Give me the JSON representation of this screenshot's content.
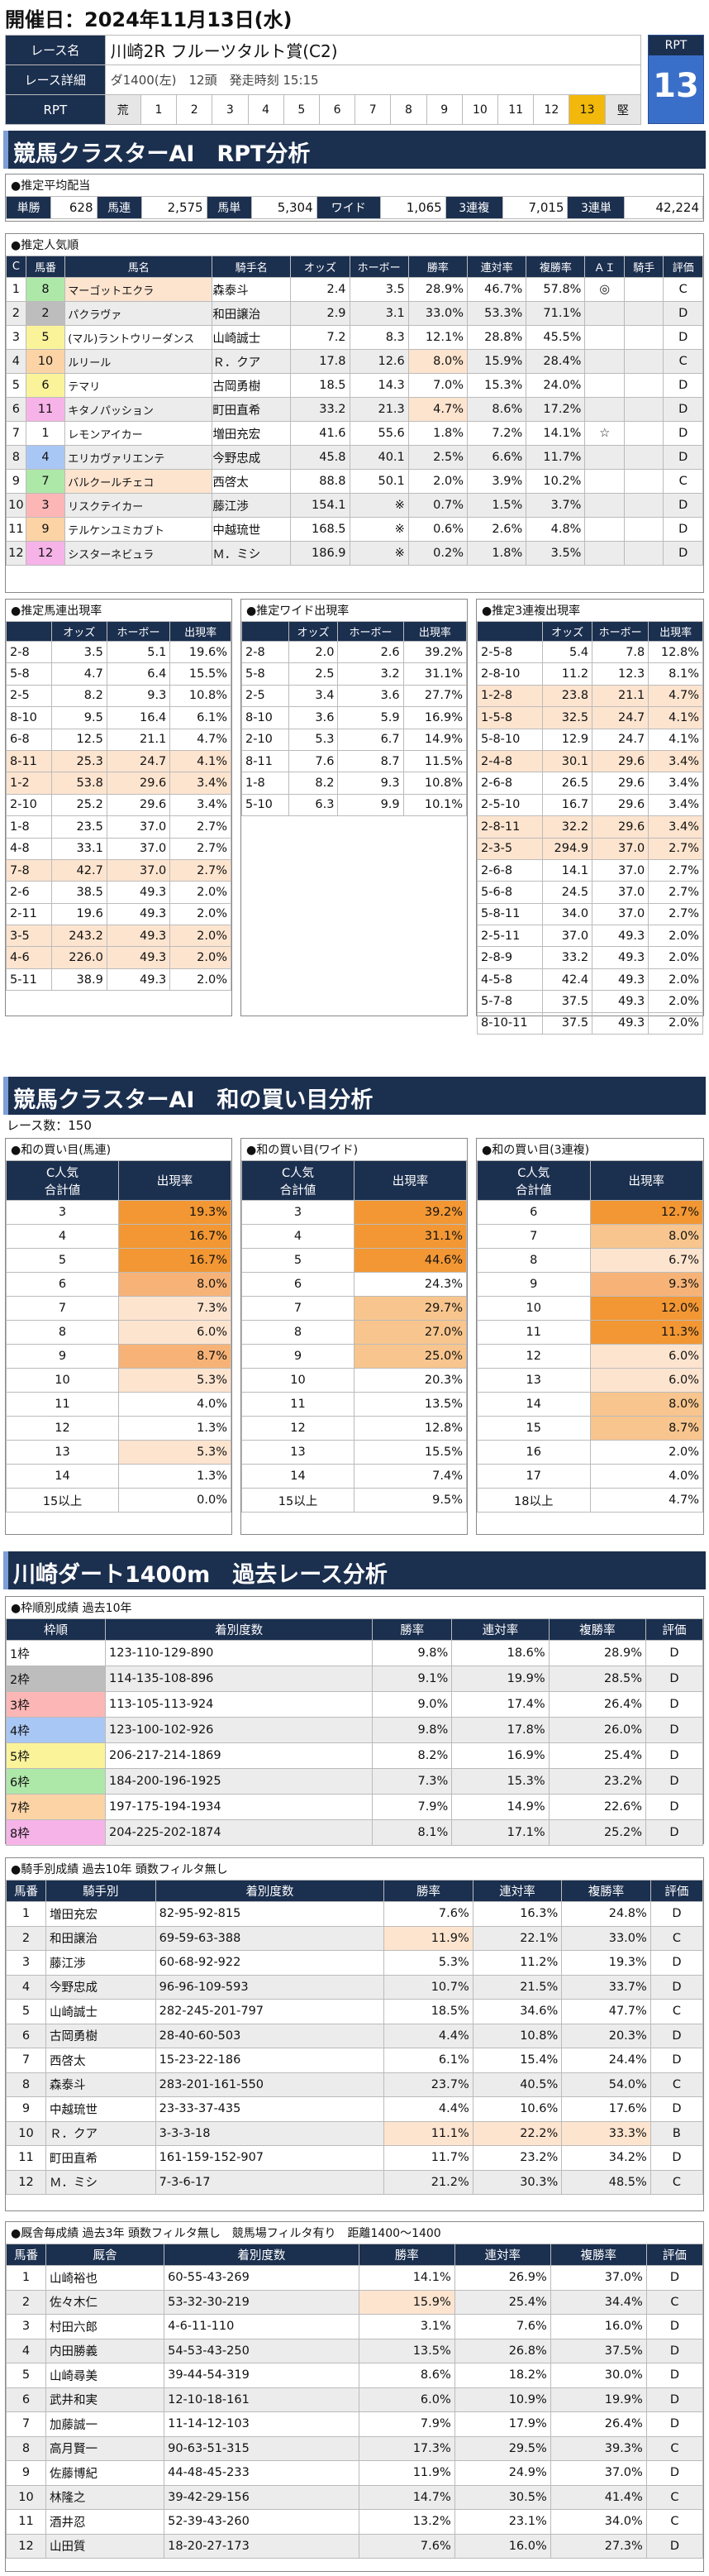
{
  "date": "開催日：2024年11月13日(水)",
  "race": {
    "name_label": "レース名",
    "name": "川崎2R フルーツタルト賞(C2)",
    "detail_label": "レース詳細",
    "detail": "ダ1400(左)　12頭　発走時刻 15:15",
    "rpt_label": "RPT",
    "scale": [
      "荒",
      "1",
      "2",
      "3",
      "4",
      "5",
      "6",
      "7",
      "8",
      "9",
      "10",
      "11",
      "12",
      "13",
      "堅"
    ],
    "rpt_badge": "RPT",
    "rpt_value": "13"
  },
  "s1": {
    "title": "競馬クラスターAI　RPT分析"
  },
  "payout": {
    "title": "●推定平均配当",
    "items": [
      [
        "単勝",
        "628"
      ],
      [
        "馬連",
        "2,575"
      ],
      [
        "馬単",
        "5,304"
      ],
      [
        "ワイド",
        "1,065"
      ],
      [
        "3連複",
        "7,015"
      ],
      [
        "3連単",
        "42,224"
      ]
    ]
  },
  "popularity": {
    "title": "●推定人気順",
    "headers": [
      "C",
      "馬番",
      "馬名",
      "騎手名",
      "オッズ",
      "ホーボー",
      "勝率",
      "連対率",
      "複勝率",
      "ＡＩ",
      "騎手",
      "評価"
    ],
    "rows": [
      [
        "1",
        "8",
        "マーゴットエクラ",
        "森泰斗",
        "2.4",
        "3.5",
        "28.9%",
        "46.7%",
        "57.8%",
        "◎",
        "",
        "C"
      ],
      [
        "2",
        "2",
        "パクラヴァ",
        "和田譲治",
        "2.9",
        "3.1",
        "33.0%",
        "53.3%",
        "71.1%",
        "",
        "",
        "D"
      ],
      [
        "3",
        "5",
        "(マル)ラントウリーダンス",
        "山崎誠士",
        "7.2",
        "8.3",
        "12.1%",
        "28.8%",
        "45.5%",
        "",
        "",
        "D"
      ],
      [
        "4",
        "10",
        "ルリール",
        "Ｒ．クア",
        "17.8",
        "12.6",
        "8.0%",
        "15.9%",
        "28.4%",
        "",
        "",
        "C"
      ],
      [
        "5",
        "6",
        "テマリ",
        "古岡勇樹",
        "18.5",
        "14.3",
        "7.0%",
        "15.3%",
        "24.0%",
        "",
        "",
        "D"
      ],
      [
        "6",
        "11",
        "キタノパッション",
        "町田直希",
        "33.2",
        "21.3",
        "4.7%",
        "8.6%",
        "17.2%",
        "",
        "",
        "D"
      ],
      [
        "7",
        "1",
        "レモンアイカー",
        "増田充宏",
        "41.6",
        "55.6",
        "1.8%",
        "7.2%",
        "14.1%",
        "☆",
        "",
        "D"
      ],
      [
        "8",
        "4",
        "エリカヴァリエンテ",
        "今野忠成",
        "45.8",
        "40.1",
        "2.5%",
        "6.6%",
        "11.7%",
        "",
        "",
        "D"
      ],
      [
        "9",
        "7",
        "バルクールチェコ",
        "西啓太",
        "88.8",
        "50.1",
        "2.0%",
        "3.9%",
        "10.2%",
        "",
        "",
        "C"
      ],
      [
        "10",
        "3",
        "リスクテイカー",
        "藤江渉",
        "154.1",
        "※",
        "0.7%",
        "1.5%",
        "3.7%",
        "",
        "",
        "D"
      ],
      [
        "11",
        "9",
        "テルケンユミカブト",
        "中越琉世",
        "168.5",
        "※",
        "0.6%",
        "2.6%",
        "4.8%",
        "",
        "",
        "D"
      ],
      [
        "12",
        "12",
        "シスターネビュラ",
        "Ｍ．ミシ",
        "186.9",
        "※",
        "0.2%",
        "1.8%",
        "3.5%",
        "",
        "",
        "D"
      ]
    ]
  },
  "umaren": {
    "title": "●推定馬連出現率",
    "headers": [
      "",
      "オッズ",
      "ホーボー",
      "出現率"
    ],
    "rows": [
      [
        "2-8",
        "3.5",
        "5.1",
        "19.6%"
      ],
      [
        "5-8",
        "4.7",
        "6.4",
        "15.5%"
      ],
      [
        "2-5",
        "8.2",
        "9.3",
        "10.8%"
      ],
      [
        "8-10",
        "9.5",
        "16.4",
        "6.1%"
      ],
      [
        "6-8",
        "12.5",
        "21.1",
        "4.7%"
      ],
      [
        "8-11",
        "25.3",
        "24.7",
        "4.1%"
      ],
      [
        "1-2",
        "53.8",
        "29.6",
        "3.4%"
      ],
      [
        "2-10",
        "25.2",
        "29.6",
        "3.4%"
      ],
      [
        "1-8",
        "23.5",
        "37.0",
        "2.7%"
      ],
      [
        "4-8",
        "33.1",
        "37.0",
        "2.7%"
      ],
      [
        "7-8",
        "42.7",
        "37.0",
        "2.7%"
      ],
      [
        "2-6",
        "38.5",
        "49.3",
        "2.0%"
      ],
      [
        "2-11",
        "19.6",
        "49.3",
        "2.0%"
      ],
      [
        "3-5",
        "243.2",
        "49.3",
        "2.0%"
      ],
      [
        "4-6",
        "226.0",
        "49.3",
        "2.0%"
      ],
      [
        "5-11",
        "38.9",
        "49.3",
        "2.0%"
      ]
    ]
  },
  "wide": {
    "title": "●推定ワイド出現率",
    "headers": [
      "",
      "オッズ",
      "ホーボー",
      "出現率"
    ],
    "rows": [
      [
        "2-8",
        "2.0",
        "2.6",
        "39.2%"
      ],
      [
        "5-8",
        "2.5",
        "3.2",
        "31.1%"
      ],
      [
        "2-5",
        "3.4",
        "3.6",
        "27.7%"
      ],
      [
        "8-10",
        "3.6",
        "5.9",
        "16.9%"
      ],
      [
        "2-10",
        "5.3",
        "6.7",
        "14.9%"
      ],
      [
        "8-11",
        "7.6",
        "8.7",
        "11.5%"
      ],
      [
        "1-8",
        "8.2",
        "9.3",
        "10.8%"
      ],
      [
        "5-10",
        "6.3",
        "9.9",
        "10.1%"
      ]
    ]
  },
  "trio": {
    "title": "●推定3連複出現率",
    "headers": [
      "",
      "オッズ",
      "ホーボー",
      "出現率"
    ],
    "rows": [
      [
        "2-5-8",
        "5.4",
        "7.8",
        "12.8%"
      ],
      [
        "2-8-10",
        "11.2",
        "12.3",
        "8.1%"
      ],
      [
        "1-2-8",
        "23.8",
        "21.1",
        "4.7%"
      ],
      [
        "1-5-8",
        "32.5",
        "24.7",
        "4.1%"
      ],
      [
        "5-8-10",
        "12.9",
        "24.7",
        "4.1%"
      ],
      [
        "2-4-8",
        "30.1",
        "29.6",
        "3.4%"
      ],
      [
        "2-6-8",
        "26.5",
        "29.6",
        "3.4%"
      ],
      [
        "2-5-10",
        "16.7",
        "29.6",
        "3.4%"
      ],
      [
        "2-8-11",
        "32.2",
        "29.6",
        "3.4%"
      ],
      [
        "2-3-5",
        "294.9",
        "37.0",
        "2.7%"
      ],
      [
        "2-6-8",
        "14.1",
        "37.0",
        "2.7%"
      ],
      [
        "5-6-8",
        "24.5",
        "37.0",
        "2.7%"
      ],
      [
        "5-8-11",
        "34.0",
        "37.0",
        "2.7%"
      ],
      [
        "2-5-11",
        "37.0",
        "49.3",
        "2.0%"
      ],
      [
        "2-8-9",
        "33.2",
        "49.3",
        "2.0%"
      ],
      [
        "4-5-8",
        "42.4",
        "49.3",
        "2.0%"
      ],
      [
        "5-7-8",
        "37.5",
        "49.3",
        "2.0%"
      ],
      [
        "8-10-11",
        "37.5",
        "49.3",
        "2.0%"
      ]
    ]
  },
  "s2": {
    "title": "競馬クラスターAI　和の買い目分析",
    "races": "レース数：150"
  },
  "sum": {
    "t1": "●和の買い目(馬連)",
    "t2": "●和の買い目(ワイド)",
    "t3": "●和の買い目(3連複)",
    "h1": "C人気",
    "h2": "合計値",
    "h3": "出現率",
    "a": [
      [
        "3",
        "19.3%"
      ],
      [
        "4",
        "16.7%"
      ],
      [
        "5",
        "16.7%"
      ],
      [
        "6",
        "8.0%"
      ],
      [
        "7",
        "7.3%"
      ],
      [
        "8",
        "6.0%"
      ],
      [
        "9",
        "8.7%"
      ],
      [
        "10",
        "5.3%"
      ],
      [
        "11",
        "4.0%"
      ],
      [
        "12",
        "1.3%"
      ],
      [
        "13",
        "5.3%"
      ],
      [
        "14",
        "1.3%"
      ],
      [
        "15以上",
        "0.0%"
      ]
    ],
    "b": [
      [
        "3",
        "39.2%"
      ],
      [
        "4",
        "31.1%"
      ],
      [
        "5",
        "44.6%"
      ],
      [
        "6",
        "24.3%"
      ],
      [
        "7",
        "29.7%"
      ],
      [
        "8",
        "27.0%"
      ],
      [
        "9",
        "25.0%"
      ],
      [
        "10",
        "20.3%"
      ],
      [
        "11",
        "13.5%"
      ],
      [
        "12",
        "12.8%"
      ],
      [
        "13",
        "15.5%"
      ],
      [
        "14",
        "7.4%"
      ],
      [
        "15以上",
        "9.5%"
      ]
    ],
    "c": [
      [
        "6",
        "12.7%"
      ],
      [
        "7",
        "8.0%"
      ],
      [
        "8",
        "6.7%"
      ],
      [
        "9",
        "9.3%"
      ],
      [
        "10",
        "12.0%"
      ],
      [
        "11",
        "11.3%"
      ],
      [
        "12",
        "6.0%"
      ],
      [
        "13",
        "6.0%"
      ],
      [
        "14",
        "8.0%"
      ],
      [
        "15",
        "8.7%"
      ],
      [
        "16",
        "2.0%"
      ],
      [
        "17",
        "4.0%"
      ],
      [
        "18以上",
        "4.7%"
      ]
    ]
  },
  "s3": {
    "title": "川崎ダート1400m　過去レース分析"
  },
  "waku": {
    "title": "●枠順別成績 過去10年",
    "headers": [
      "枠順",
      "着別度数",
      "勝率",
      "連対率",
      "複勝率",
      "評価"
    ],
    "rows": [
      [
        "1枠",
        "123-110-129-890",
        "9.8%",
        "18.6%",
        "28.9%",
        "D"
      ],
      [
        "2枠",
        "114-135-108-896",
        "9.1%",
        "19.9%",
        "28.5%",
        "D"
      ],
      [
        "3枠",
        "113-105-113-924",
        "9.0%",
        "17.4%",
        "26.4%",
        "D"
      ],
      [
        "4枠",
        "123-100-102-926",
        "9.8%",
        "17.8%",
        "26.0%",
        "D"
      ],
      [
        "5枠",
        "206-217-214-1869",
        "8.2%",
        "16.9%",
        "25.4%",
        "D"
      ],
      [
        "6枠",
        "184-200-196-1925",
        "7.3%",
        "15.3%",
        "23.2%",
        "D"
      ],
      [
        "7枠",
        "197-175-194-1934",
        "7.9%",
        "14.9%",
        "22.6%",
        "D"
      ],
      [
        "8枠",
        "204-225-202-1874",
        "8.1%",
        "17.1%",
        "25.2%",
        "D"
      ]
    ]
  },
  "jockey": {
    "title": "●騎手別成績 過去10年 頭数フィルタ無し",
    "headers": [
      "馬番",
      "騎手別",
      "着別度数",
      "勝率",
      "連対率",
      "複勝率",
      "評価"
    ],
    "rows": [
      [
        "1",
        "増田充宏",
        "82-95-92-815",
        "7.6%",
        "16.3%",
        "24.8%",
        "D"
      ],
      [
        "2",
        "和田譲治",
        "69-59-63-388",
        "11.9%",
        "22.1%",
        "33.0%",
        "C"
      ],
      [
        "3",
        "藤江渉",
        "60-68-92-922",
        "5.3%",
        "11.2%",
        "19.3%",
        "D"
      ],
      [
        "4",
        "今野忠成",
        "96-96-109-593",
        "10.7%",
        "21.5%",
        "33.7%",
        "D"
      ],
      [
        "5",
        "山崎誠士",
        "282-245-201-797",
        "18.5%",
        "34.6%",
        "47.7%",
        "C"
      ],
      [
        "6",
        "古岡勇樹",
        "28-40-60-503",
        "4.4%",
        "10.8%",
        "20.3%",
        "D"
      ],
      [
        "7",
        "西啓太",
        "15-23-22-186",
        "6.1%",
        "15.4%",
        "24.4%",
        "D"
      ],
      [
        "8",
        "森泰斗",
        "283-201-161-550",
        "23.7%",
        "40.5%",
        "54.0%",
        "C"
      ],
      [
        "9",
        "中越琉世",
        "23-33-37-435",
        "4.4%",
        "10.6%",
        "17.6%",
        "D"
      ],
      [
        "10",
        "Ｒ．クア",
        "3-3-3-18",
        "11.1%",
        "22.2%",
        "33.3%",
        "B"
      ],
      [
        "11",
        "町田直希",
        "161-159-152-907",
        "11.7%",
        "23.2%",
        "34.2%",
        "D"
      ],
      [
        "12",
        "Ｍ．ミシ",
        "7-3-6-17",
        "21.2%",
        "30.3%",
        "48.5%",
        "C"
      ]
    ]
  },
  "trainer": {
    "title": "●厩舎毎成績 過去3年 頭数フィルタ無し　競馬場フィルタ有り　距離1400～1400",
    "headers": [
      "馬番",
      "厩舎",
      "着別度数",
      "勝率",
      "連対率",
      "複勝率",
      "評価"
    ],
    "rows": [
      [
        "1",
        "山崎裕也",
        "60-55-43-269",
        "14.1%",
        "26.9%",
        "37.0%",
        "D"
      ],
      [
        "2",
        "佐々木仁",
        "53-32-30-219",
        "15.9%",
        "25.4%",
        "34.4%",
        "C"
      ],
      [
        "3",
        "村田六郎",
        "4-6-11-110",
        "3.1%",
        "7.6%",
        "16.0%",
        "D"
      ],
      [
        "4",
        "内田勝義",
        "54-53-43-250",
        "13.5%",
        "26.8%",
        "37.5%",
        "D"
      ],
      [
        "5",
        "山崎尋美",
        "39-44-54-319",
        "8.6%",
        "18.2%",
        "30.0%",
        "D"
      ],
      [
        "6",
        "武井和実",
        "12-10-18-161",
        "6.0%",
        "10.9%",
        "19.9%",
        "D"
      ],
      [
        "7",
        "加藤誠一",
        "11-14-12-103",
        "7.9%",
        "17.9%",
        "26.4%",
        "D"
      ],
      [
        "8",
        "高月賢一",
        "90-63-51-315",
        "17.3%",
        "29.5%",
        "39.3%",
        "C"
      ],
      [
        "9",
        "佐藤博紀",
        "44-48-45-233",
        "11.9%",
        "24.9%",
        "37.0%",
        "D"
      ],
      [
        "10",
        "林隆之",
        "39-42-29-156",
        "14.7%",
        "30.5%",
        "41.4%",
        "C"
      ],
      [
        "11",
        "酒井忍",
        "52-39-43-260",
        "13.2%",
        "23.1%",
        "34.0%",
        "C"
      ],
      [
        "12",
        "山田質",
        "18-20-27-173",
        "7.6%",
        "16.0%",
        "27.3%",
        "D"
      ]
    ]
  }
}
